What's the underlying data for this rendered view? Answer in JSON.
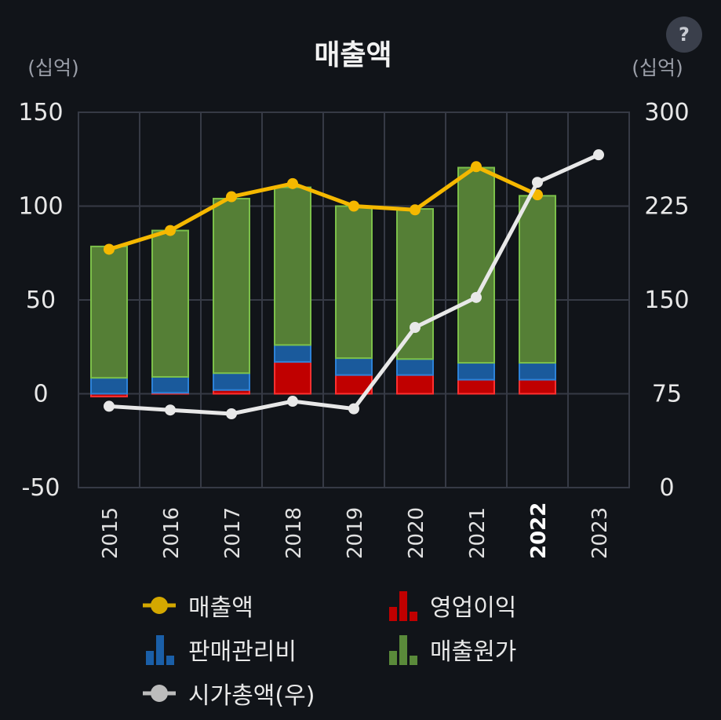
{
  "help": {
    "label": "?",
    "icon": "question-icon"
  },
  "chart_data": {
    "type": "bar",
    "title": "매출액",
    "y_left_unit": "(십억)",
    "y_right_unit": "(십억)",
    "ylim_left": [
      -50,
      150
    ],
    "ylim_right": [
      0,
      300
    ],
    "yticks_left": [
      "150",
      "100",
      "50",
      "0",
      "-50"
    ],
    "yticks_right": [
      "300",
      "225",
      "150",
      "75",
      "0"
    ],
    "categories": [
      "2015",
      "2016",
      "2017",
      "2018",
      "2019",
      "2020",
      "2021",
      "2022",
      "2023"
    ],
    "highlight_category": "2022",
    "grid": true,
    "legend_position": "bottom",
    "series": [
      {
        "name": "영업이익",
        "kind": "bar",
        "axis": "left",
        "color": "#c00000",
        "values": [
          -1.5,
          0.5,
          2,
          17,
          10,
          10,
          7.5,
          7.5,
          null
        ]
      },
      {
        "name": "판매관리비",
        "kind": "bar",
        "axis": "left",
        "color": "#1a5fa8",
        "values": [
          8.5,
          8.5,
          9,
          9,
          9,
          8.5,
          9,
          9,
          null
        ]
      },
      {
        "name": "매출원가",
        "kind": "bar",
        "axis": "left",
        "color": "#5a8a3a",
        "values": [
          70,
          78,
          93,
          84,
          81,
          80,
          104,
          89,
          null
        ]
      },
      {
        "name": "매출액",
        "kind": "line",
        "axis": "left",
        "color": "#f5b800",
        "values": [
          77,
          87,
          105,
          112,
          100,
          98,
          121,
          106,
          null
        ]
      },
      {
        "name": "시가총액(우)",
        "kind": "line",
        "axis": "right",
        "color": "#e8e8e8",
        "values": [
          65,
          62,
          59,
          69,
          63,
          128,
          152,
          244,
          266
        ]
      }
    ]
  },
  "legend": [
    {
      "label": "매출액",
      "icon": "line-marker-icon",
      "color": "#f5b800"
    },
    {
      "label": "영업이익",
      "icon": "bar-chart-icon",
      "color": "#c00000"
    },
    {
      "label": "판매관리비",
      "icon": "bar-chart-icon",
      "color": "#1a5fa8"
    },
    {
      "label": "매출원가",
      "icon": "bar-chart-icon",
      "color": "#5a8a3a"
    },
    {
      "label": "시가총액(우)",
      "icon": "line-marker-icon",
      "color": "#e8e8e8"
    }
  ]
}
